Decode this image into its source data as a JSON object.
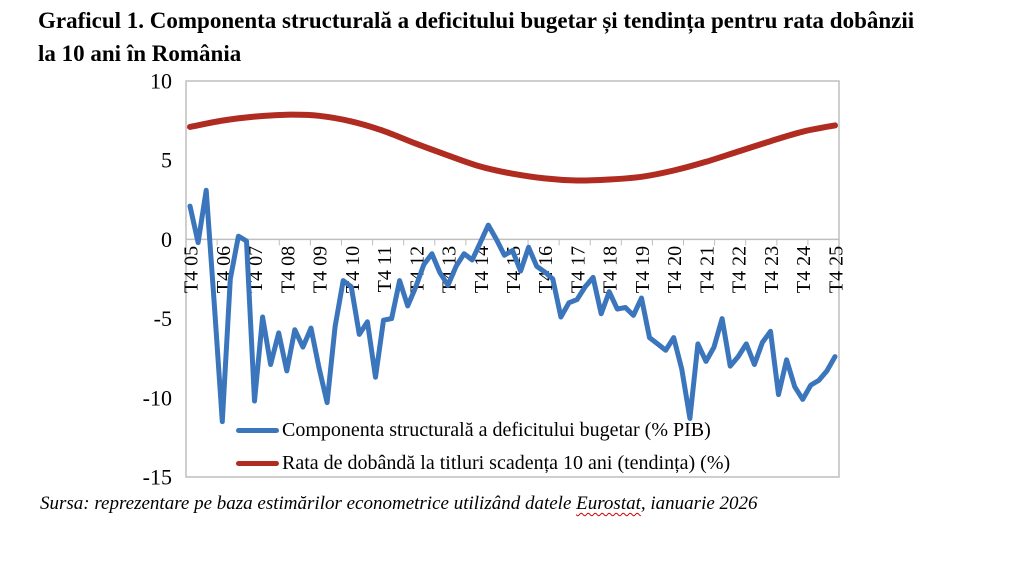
{
  "title": {
    "line1": "Graficul 1. Componenta structurală a deficitului bugetar și tendința pentru rata dobânzii",
    "line2": "la 10 ani în România"
  },
  "source": {
    "prefix": "Sursa: reprezentare pe baza estimărilor econometrice utilizând datele ",
    "underlined_word": "Eurostat",
    "suffix": ", ianuarie 2026"
  },
  "chart_data": {
    "type": "line",
    "x_labels_shown": [
      "T4 05",
      "T4 06",
      "T4 07",
      "T4 08",
      "T4 09",
      "T4 10",
      "T4 11",
      "T4 12",
      "T4 13",
      "T4 14",
      "T4 15",
      "T4 16",
      "T4 17",
      "T4 18",
      "T4 19",
      "T4 20",
      "T4 21",
      "T4 22",
      "T4 23",
      "T4 24",
      "T4 25"
    ],
    "x_label_every_n_points": 4,
    "x_label_rotation_deg": -90,
    "y_ticks": [
      10,
      5,
      0,
      -5,
      -10,
      -15
    ],
    "y_min": -15,
    "y_max": 10,
    "gridlines": "none except zero axis line",
    "legend_position": "inside-bottom-left",
    "series": [
      {
        "name": "Componenta structurală a deficitului bugetar (% PIB)",
        "color": "#3B76BD",
        "style": "jagged quarterly polyline",
        "values": [
          2.1,
          -0.2,
          3.1,
          -4.0,
          -11.5,
          -2.5,
          0.2,
          -0.1,
          -10.2,
          -4.9,
          -7.9,
          -5.9,
          -8.3,
          -5.7,
          -6.8,
          -5.6,
          -8.1,
          -10.3,
          -5.5,
          -2.6,
          -3.0,
          -6.0,
          -5.2,
          -8.7,
          -5.1,
          -5.0,
          -2.6,
          -4.2,
          -3.0,
          -1.6,
          -0.9,
          -2.1,
          -2.9,
          -1.7,
          -0.9,
          -1.3,
          -0.2,
          0.9,
          0.0,
          -1.0,
          -0.7,
          -2.0,
          -0.5,
          -1.7,
          -2.05,
          -2.5,
          -4.9,
          -4.0,
          -3.8,
          -3.0,
          -2.4,
          -4.7,
          -3.3,
          -4.4,
          -4.3,
          -4.8,
          -3.7,
          -6.2,
          -6.6,
          -7.0,
          -6.2,
          -8.2,
          -11.3,
          -6.6,
          -7.7,
          -6.8,
          -5.0,
          -8.0,
          -7.4,
          -6.6,
          -7.9,
          -6.5,
          -5.8,
          -9.8,
          -7.6,
          -9.3,
          -10.1,
          -9.2,
          -8.9,
          -8.3,
          -7.4
        ]
      },
      {
        "name": "Rata de dobândă la titluri scadența 10 ani (tendința) (%)",
        "color": "#B02B20",
        "style": "smooth trend curve",
        "values_at_labels": [
          7.1,
          7.5,
          7.75,
          7.87,
          7.8,
          7.45,
          6.85,
          6.05,
          5.3,
          4.6,
          4.15,
          3.85,
          3.72,
          3.78,
          3.95,
          4.35,
          4.9,
          5.55,
          6.2,
          6.8,
          7.2
        ]
      }
    ]
  },
  "colors": {
    "plot_border": "#BFBFBF",
    "axis_line": "#BFBFBF",
    "background": "#FFFFFF",
    "text": "#000000",
    "spellcheck_underline": "#CC0000"
  }
}
